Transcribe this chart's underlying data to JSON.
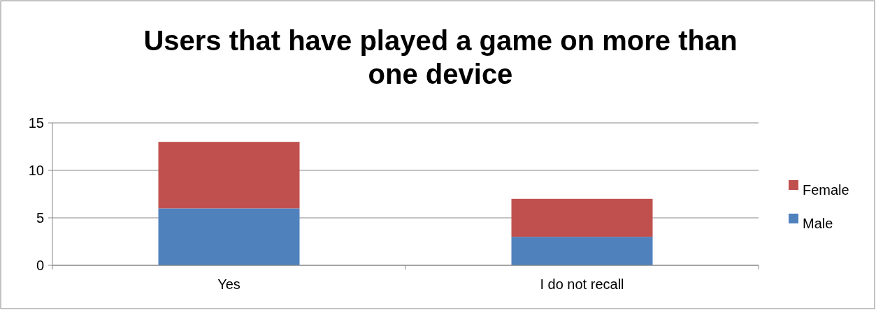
{
  "chart_data": {
    "type": "bar",
    "title": "Users that have played a game on more than one device",
    "categories": [
      "Yes",
      "I do not recall"
    ],
    "stacked": true,
    "series": [
      {
        "name": "Male",
        "color": "#4f81bd",
        "values": [
          6,
          3
        ]
      },
      {
        "name": "Female",
        "color": "#c0504d",
        "values": [
          7,
          4
        ]
      }
    ],
    "ylim": [
      0,
      15
    ],
    "yticks": [
      0,
      5,
      10,
      15
    ],
    "grid": "y",
    "legend": "right"
  }
}
